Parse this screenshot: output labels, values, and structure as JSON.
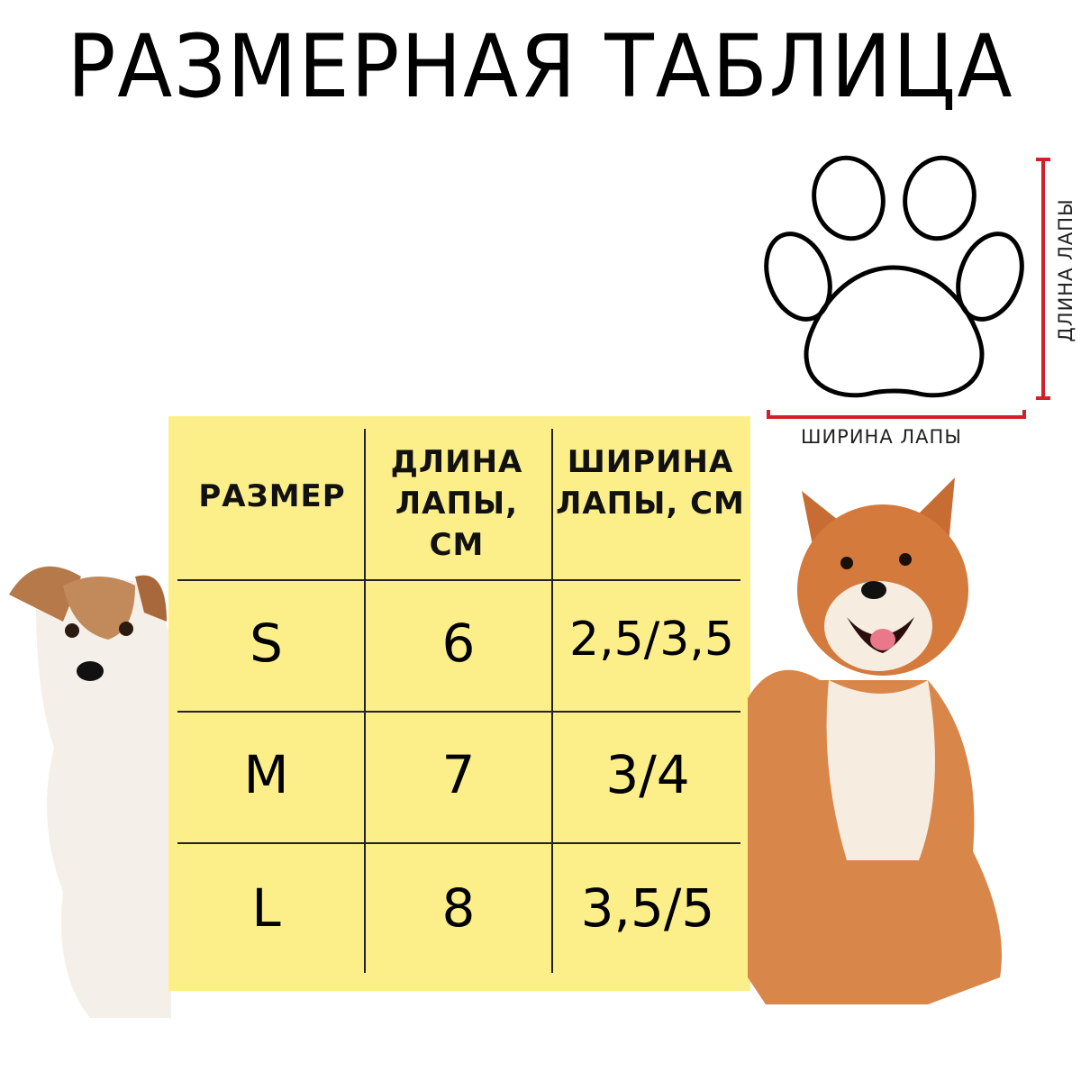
{
  "title": "РАЗМЕРНАЯ ТАБЛИЦА",
  "diagram": {
    "width_label": "ШИРИНА ЛАПЫ",
    "length_label": "ДЛИНА ЛАПЫ",
    "measure_color": "#d0202a",
    "icon": "paw-icon"
  },
  "table": {
    "background": "#fcef8a",
    "headers": [
      "РАЗМЕР",
      "ДЛИНА ЛАПЫ, СМ",
      "ШИРИНА ЛАПЫ, СМ"
    ],
    "rows": [
      {
        "size": "S",
        "length": "6",
        "width": "2,5/3,5"
      },
      {
        "size": "M",
        "length": "7",
        "width": "3/4"
      },
      {
        "size": "L",
        "length": "8",
        "width": "3,5/5"
      }
    ]
  },
  "images": [
    "jack-russell-dog",
    "shiba-inu-dog"
  ]
}
